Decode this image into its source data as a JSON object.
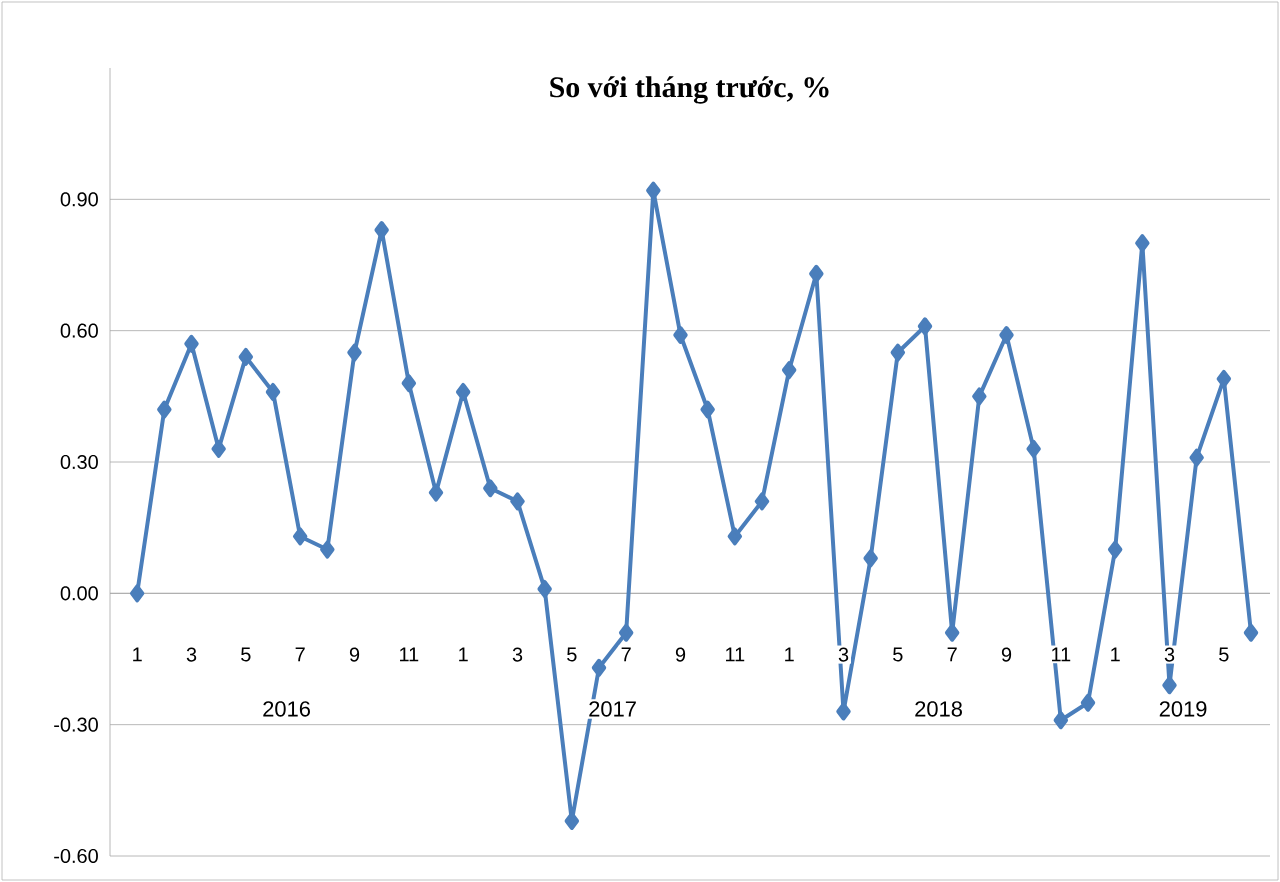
{
  "chart_data": {
    "type": "line",
    "title": "So với tháng trước, %",
    "categories": [
      "1",
      null,
      "3",
      null,
      "5",
      null,
      "7",
      null,
      "9",
      null,
      "11",
      null,
      "1",
      null,
      "3",
      null,
      "5",
      null,
      "7",
      null,
      "9",
      null,
      "11",
      null,
      "1",
      null,
      "3",
      null,
      "5",
      null,
      "7",
      null,
      "9",
      null,
      "11",
      null,
      "1",
      null,
      "3",
      null,
      "5",
      null
    ],
    "series": [
      {
        "color": "#4a7ebb",
        "values": [
          0.0,
          0.42,
          0.57,
          0.33,
          0.54,
          0.46,
          0.13,
          0.1,
          0.55,
          0.83,
          0.48,
          0.23,
          0.46,
          0.24,
          0.21,
          0.01,
          -0.52,
          -0.17,
          -0.09,
          0.92,
          0.59,
          0.42,
          0.13,
          0.21,
          0.51,
          0.73,
          -0.27,
          0.08,
          0.55,
          0.61,
          -0.09,
          0.45,
          0.59,
          0.33,
          -0.29,
          -0.25,
          0.1,
          0.8,
          -0.21,
          0.31,
          0.49,
          -0.09
        ]
      }
    ],
    "annotations": [
      "2016",
      "2017",
      "2018",
      "2019"
    ],
    "ylim": [
      -0.6,
      1.2
    ],
    "yticks": [
      {
        "value": -0.6,
        "label": "-0.60"
      },
      {
        "value": -0.3,
        "label": "-0.30"
      },
      {
        "value": 0,
        "label": "0.00"
      },
      {
        "value": 0.3,
        "label": "0.30"
      },
      {
        "value": 0.6,
        "label": "0.60"
      },
      {
        "value": 0.9,
        "label": "0.90"
      }
    ],
    "grid": "y",
    "marker": "diamond",
    "line_style": "solid"
  }
}
